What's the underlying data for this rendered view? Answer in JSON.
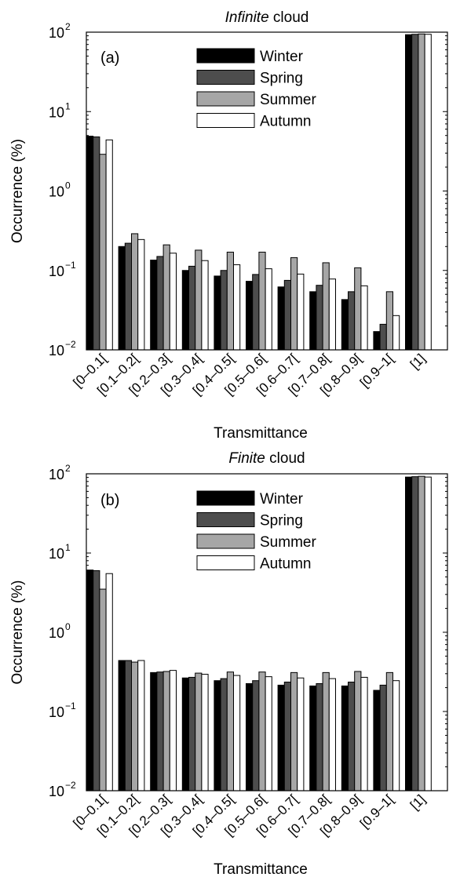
{
  "chart_data": [
    {
      "type": "bar",
      "title_em": "Infinite",
      "title_rest": " cloud",
      "panel_label": "(a)",
      "xlabel": "Transmittance",
      "ylabel": "Occurrence (%)",
      "yscale": "log",
      "ylim": [
        0.01,
        100
      ],
      "ytick_base": "10",
      "ytick_exponents": [
        "−2",
        "−1",
        "0",
        "1",
        "2"
      ],
      "ytick_values": [
        0.01,
        0.1,
        1,
        10,
        100
      ],
      "legend_position": "top-center",
      "categories": [
        "[0–0.1[",
        "[0.1–0.2[",
        "[0.2–0.3[",
        "[0.3–0.4[",
        "[0.4–0.5[",
        "[0.5–0.6[",
        "[0.6–0.7[",
        "[0.7–0.8[",
        "[0.8–0.9[",
        "[0.9–1[",
        "[1]"
      ],
      "series": [
        {
          "name": "Winter",
          "color": "#000000",
          "values": [
            4.9,
            0.2,
            0.135,
            0.1,
            0.085,
            0.073,
            0.062,
            0.054,
            0.043,
            0.017,
            93
          ]
        },
        {
          "name": "Spring",
          "color": "#4d4d4d",
          "values": [
            4.8,
            0.22,
            0.15,
            0.113,
            0.1,
            0.089,
            0.075,
            0.065,
            0.054,
            0.021,
            94
          ]
        },
        {
          "name": "Summer",
          "color": "#a6a6a6",
          "values": [
            2.9,
            0.29,
            0.21,
            0.18,
            0.17,
            0.17,
            0.145,
            0.125,
            0.108,
            0.054,
            95
          ]
        },
        {
          "name": "Autumn",
          "color": "#ffffff",
          "values": [
            4.4,
            0.245,
            0.165,
            0.133,
            0.118,
            0.105,
            0.09,
            0.078,
            0.064,
            0.027,
            94
          ]
        }
      ]
    },
    {
      "type": "bar",
      "title_em": "Finite",
      "title_rest": " cloud",
      "panel_label": "(b)",
      "xlabel": "Transmittance",
      "ylabel": "Occurrence (%)",
      "yscale": "log",
      "ylim": [
        0.01,
        100
      ],
      "ytick_base": "10",
      "ytick_exponents": [
        "−2",
        "−1",
        "0",
        "1",
        "2"
      ],
      "ytick_values": [
        0.01,
        0.1,
        1,
        10,
        100
      ],
      "legend_position": "top-center",
      "categories": [
        "[0–0.1[",
        "[0.1–0.2[",
        "[0.2–0.3[",
        "[0.3–0.4[",
        "[0.4–0.5[",
        "[0.5–0.6[",
        "[0.6–0.7[",
        "[0.7–0.8[",
        "[0.8–0.9[",
        "[0.9–1[",
        "[1]"
      ],
      "series": [
        {
          "name": "Winter",
          "color": "#000000",
          "values": [
            6.1,
            0.44,
            0.31,
            0.265,
            0.245,
            0.225,
            0.215,
            0.21,
            0.21,
            0.185,
            91
          ]
        },
        {
          "name": "Spring",
          "color": "#4d4d4d",
          "values": [
            6.0,
            0.44,
            0.315,
            0.27,
            0.26,
            0.245,
            0.235,
            0.225,
            0.235,
            0.215,
            92
          ]
        },
        {
          "name": "Summer",
          "color": "#a6a6a6",
          "values": [
            3.5,
            0.42,
            0.32,
            0.305,
            0.315,
            0.315,
            0.31,
            0.31,
            0.32,
            0.31,
            93
          ]
        },
        {
          "name": "Autumn",
          "color": "#ffffff",
          "values": [
            5.5,
            0.44,
            0.33,
            0.295,
            0.285,
            0.275,
            0.265,
            0.26,
            0.27,
            0.245,
            91
          ]
        }
      ]
    }
  ]
}
